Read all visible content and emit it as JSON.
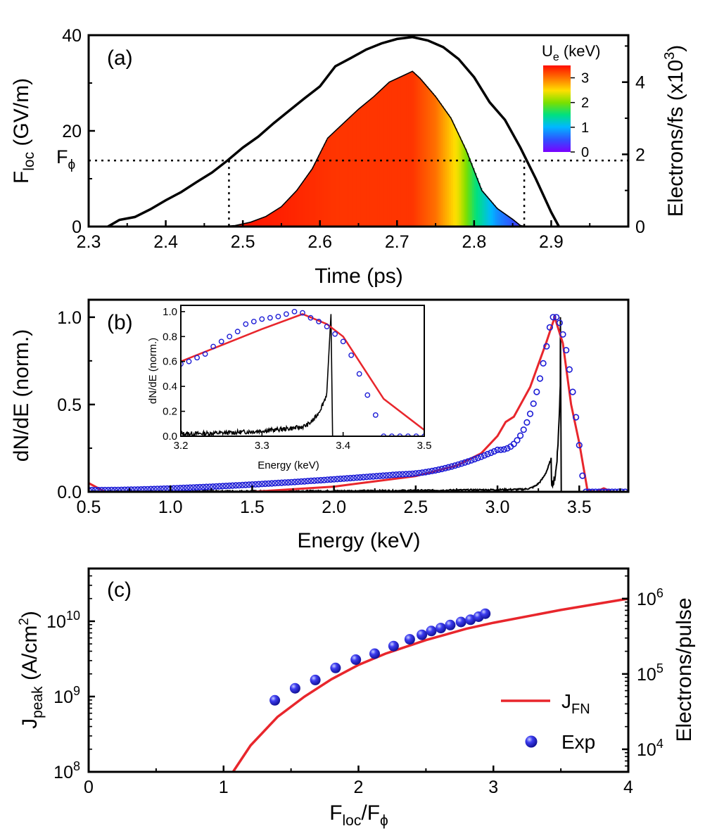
{
  "chart_data": [
    {
      "panel": "(a)",
      "type": "area",
      "xlabel": "Time (ps)",
      "ylabel_left": {
        "main": "F",
        "sub": "loc",
        "units": " (GV/m)"
      },
      "ylabel_right": {
        "main": "Electrons/fs (x10",
        "sup": "3",
        "end": ")"
      },
      "xlim": [
        2.3,
        3.0
      ],
      "ylim": [
        0,
        40
      ],
      "ylim_right": [
        0,
        5.3
      ],
      "xticks": [
        2.3,
        2.4,
        2.5,
        2.6,
        2.7,
        2.8,
        2.9
      ],
      "xtick_labels": [
        "2.3",
        "2.4",
        "2.5",
        "2.6",
        "2.7",
        "2.8",
        "2.9"
      ],
      "yticks": [
        0,
        20,
        40
      ],
      "ytick_labels": [
        "0",
        "20",
        "40"
      ],
      "yticks_right": [
        0,
        2,
        4
      ],
      "ytick_labels_right": [
        "0",
        "2",
        "4"
      ],
      "threshold": {
        "label_main": "F",
        "label_sub": "ϕ",
        "value": 13.8,
        "x_left": 2.482,
        "x_right": 2.865
      },
      "series": [
        {
          "role": "field",
          "color": "#000000",
          "x": [
            2.325,
            2.34,
            2.36,
            2.38,
            2.4,
            2.42,
            2.44,
            2.46,
            2.48,
            2.5,
            2.52,
            2.54,
            2.56,
            2.58,
            2.6,
            2.62,
            2.64,
            2.66,
            2.68,
            2.7,
            2.72,
            2.74,
            2.76,
            2.78,
            2.8,
            2.82,
            2.84,
            2.86,
            2.88,
            2.9,
            2.91
          ],
          "y": [
            0,
            1.4,
            2.0,
            3.6,
            5.5,
            7.2,
            9.3,
            11.3,
            13.8,
            16.5,
            18.8,
            21.6,
            24.2,
            26.8,
            29.3,
            33.5,
            35.2,
            37.0,
            38.3,
            39.2,
            39.6,
            38.9,
            37.5,
            35.0,
            31.2,
            26.0,
            22.3,
            16.5,
            10.0,
            3.0,
            0
          ]
        },
        {
          "role": "emission",
          "colormap": "spectral",
          "x": [
            2.47,
            2.49,
            2.51,
            2.53,
            2.55,
            2.57,
            2.59,
            2.61,
            2.63,
            2.65,
            2.67,
            2.69,
            2.71,
            2.72,
            2.73,
            2.75,
            2.77,
            2.79,
            2.81,
            2.83,
            2.85,
            2.86,
            2.87
          ],
          "y": [
            0,
            0.03,
            0.12,
            0.28,
            0.55,
            1.0,
            1.6,
            2.45,
            2.85,
            3.25,
            3.6,
            4.0,
            4.2,
            4.3,
            4.1,
            3.6,
            3.0,
            2.1,
            1.0,
            0.5,
            0.2,
            0.03,
            0
          ],
          "ue_x": [
            2.47,
            2.55,
            2.62,
            2.72,
            2.75,
            2.78,
            2.8,
            2.83,
            2.87
          ],
          "ue_kev": [
            3.5,
            3.4,
            3.3,
            3.3,
            3.0,
            2.4,
            1.6,
            0.8,
            0.2
          ]
        }
      ],
      "colorbar": {
        "title_main": "U",
        "title_sub": "e",
        "title_units": " (keV)",
        "range": [
          0,
          3.5
        ],
        "ticks": [
          0,
          1,
          2,
          3
        ],
        "tick_labels": [
          "0",
          "1",
          "2",
          "3"
        ]
      }
    },
    {
      "panel": "(b)",
      "type": "line",
      "xlabel": "Energy (keV)",
      "ylabel": "dN/dE (norm.)",
      "xlim": [
        0.5,
        3.8
      ],
      "ylim": [
        0,
        1.1
      ],
      "xticks": [
        0.5,
        1.0,
        1.5,
        2.0,
        2.5,
        3.0,
        3.5
      ],
      "xtick_labels": [
        "0.5",
        "1.0",
        "1.5",
        "2.0",
        "2.5",
        "3.0",
        "3.5"
      ],
      "yticks": [
        0,
        0.5,
        1.0
      ],
      "ytick_labels": [
        "0.0",
        "0.5",
        "1.0"
      ],
      "series": [
        {
          "role": "sim-red",
          "color": "#e8262c",
          "x": [
            0.5,
            0.6,
            0.8,
            1.0,
            1.5,
            2.0,
            2.25,
            2.5,
            2.75,
            2.9,
            3.0,
            3.05,
            3.1,
            3.2,
            3.3,
            3.35,
            3.4,
            3.45,
            3.5,
            3.55,
            3.6,
            3.65,
            3.7,
            3.8
          ],
          "y": [
            0.05,
            0.0,
            0.0,
            0.0,
            0.0,
            0.03,
            0.06,
            0.09,
            0.15,
            0.22,
            0.32,
            0.4,
            0.43,
            0.6,
            0.86,
            1.0,
            0.85,
            0.5,
            0.28,
            0.01,
            0.0,
            0.02,
            0.0,
            0.0
          ]
        },
        {
          "role": "exp-circles",
          "color": "#1c1cd6",
          "x_range": [
            0.5,
            3.8
          ],
          "step": 0.02
        },
        {
          "role": "sim-black",
          "color": "#000000",
          "x_range": [
            0.5,
            3.39
          ],
          "peak_x": 3.385,
          "peak_y": 1.0
        }
      ],
      "inset": {
        "xlabel": "Energy (keV)",
        "ylabel": "dN/dE (norm.)",
        "xlim": [
          3.2,
          3.5
        ],
        "ylim": [
          0,
          1.05
        ],
        "xticks": [
          3.2,
          3.3,
          3.4,
          3.5
        ],
        "xtick_labels": [
          "3.2",
          "3.3",
          "3.4",
          "3.5"
        ],
        "yticks": [
          0,
          0.2,
          0.4,
          0.6,
          0.8,
          1.0
        ],
        "ytick_labels": [
          "0.0",
          "0.2",
          "0.4",
          "0.6",
          "0.8",
          "1.0"
        ],
        "red_x": [
          3.2,
          3.25,
          3.3,
          3.35,
          3.38,
          3.4,
          3.45,
          3.5
        ],
        "red_y": [
          0.6,
          0.73,
          0.86,
          0.98,
          0.9,
          0.8,
          0.3,
          0.05
        ],
        "circle_x": [
          3.2,
          3.21,
          3.22,
          3.23,
          3.24,
          3.25,
          3.26,
          3.27,
          3.28,
          3.29,
          3.3,
          3.31,
          3.32,
          3.33,
          3.34,
          3.35,
          3.36,
          3.37,
          3.38,
          3.39,
          3.4,
          3.41,
          3.42,
          3.43,
          3.44,
          3.45,
          3.46,
          3.47,
          3.48,
          3.49,
          3.5
        ],
        "circle_y": [
          0.58,
          0.6,
          0.63,
          0.66,
          0.72,
          0.76,
          0.8,
          0.84,
          0.9,
          0.92,
          0.94,
          0.95,
          0.96,
          0.98,
          1.0,
          0.99,
          0.95,
          0.92,
          0.88,
          0.82,
          0.76,
          0.65,
          0.5,
          0.33,
          0.17,
          0.0,
          0.0,
          0.0,
          0.0,
          0.0,
          0.0
        ],
        "black_peak_x": 3.385
      }
    },
    {
      "panel": "(c)",
      "type": "scatter",
      "xlabel": {
        "main": "F",
        "sub": "loc",
        "mid": "/F",
        "sub2": "ϕ"
      },
      "ylabel_left": {
        "main": "J",
        "sub": "peak",
        "units": " (A/cm",
        "sup": "2",
        "end": ")"
      },
      "ylabel_right": "Electrons/pulse",
      "xlim": [
        0,
        4
      ],
      "ylim_log10": [
        8,
        10.7
      ],
      "ylim_right_log10": [
        3.7,
        6.4
      ],
      "xticks": [
        0,
        1,
        2,
        3,
        4
      ],
      "xtick_labels": [
        "0",
        "1",
        "2",
        "3",
        "4"
      ],
      "yticks_log10": [
        8,
        9,
        10
      ],
      "ytick_labels": [
        {
          "base": "10",
          "exp": "8"
        },
        {
          "base": "10",
          "exp": "9"
        },
        {
          "base": "10",
          "exp": "10"
        }
      ],
      "yticks_right_log10": [
        4,
        5,
        6
      ],
      "ytick_labels_right": [
        {
          "base": "10",
          "exp": "4"
        },
        {
          "base": "10",
          "exp": "5"
        },
        {
          "base": "10",
          "exp": "6"
        }
      ],
      "series": [
        {
          "name_main": "J",
          "name_sub": "FN",
          "role": "line",
          "color": "#e8262c",
          "x": [
            1.07,
            1.2,
            1.4,
            1.6,
            1.8,
            2.0,
            2.2,
            2.5,
            2.8,
            3.0,
            3.5,
            4.0
          ],
          "log10_y": [
            8.0,
            8.35,
            8.73,
            9.0,
            9.23,
            9.42,
            9.57,
            9.75,
            9.9,
            9.98,
            10.15,
            10.3
          ]
        },
        {
          "name": "Exp",
          "role": "points",
          "color": "#1a1adf",
          "x": [
            1.38,
            1.53,
            1.68,
            1.83,
            1.98,
            2.12,
            2.26,
            2.38,
            2.47,
            2.54,
            2.61,
            2.68,
            2.76,
            2.83,
            2.89,
            2.94
          ],
          "log10_y": [
            8.95,
            9.11,
            9.22,
            9.38,
            9.49,
            9.57,
            9.67,
            9.76,
            9.82,
            9.87,
            9.91,
            9.95,
            9.99,
            10.02,
            10.06,
            10.1
          ]
        }
      ],
      "legend": {
        "position": "bottom-right"
      }
    }
  ]
}
